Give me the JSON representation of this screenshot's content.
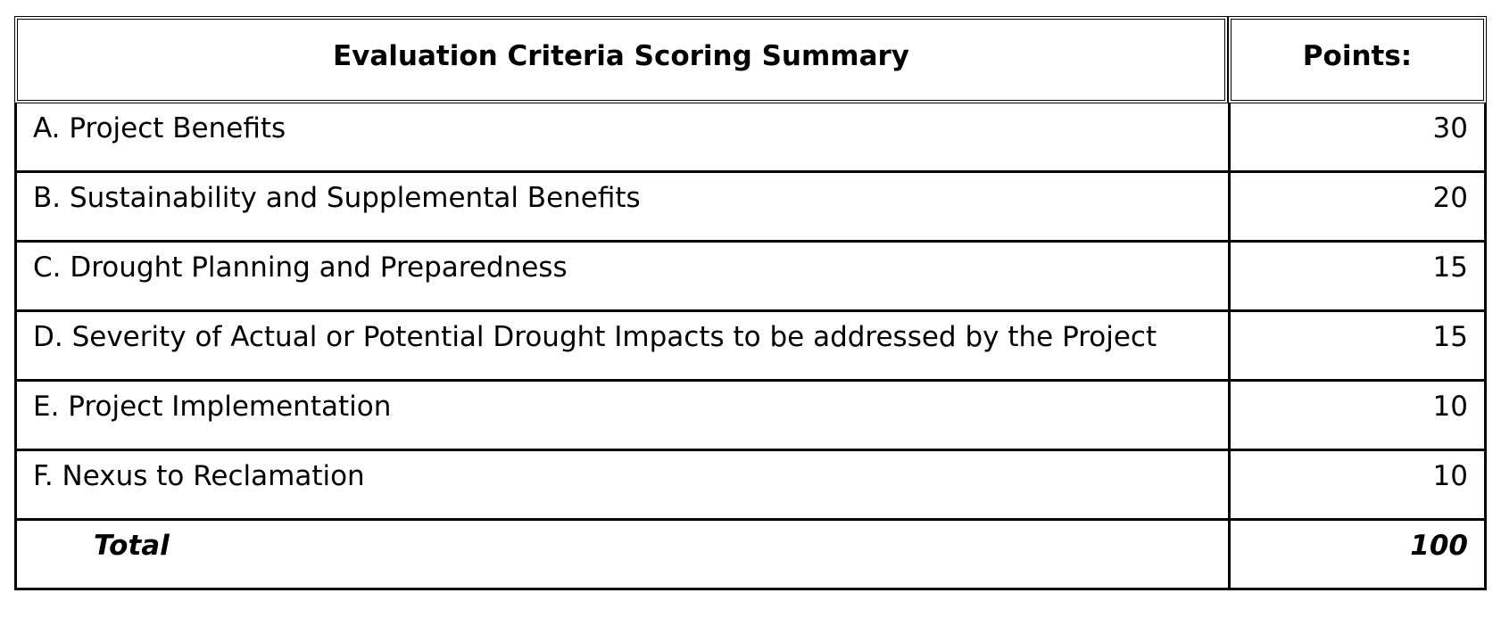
{
  "table": {
    "header": [
      "Evaluation Criteria Scoring Summary",
      "Points:"
    ],
    "rows": [
      [
        "A. Project Benefits",
        30
      ],
      [
        "B. Sustainability and Supplemental Benefits",
        20
      ],
      [
        "C. Drought Planning and Preparedness",
        15
      ],
      [
        "D. Severity of Actual or Potential Drought Impacts to be addressed by the Project",
        15
      ],
      [
        "E. Project Implementation",
        10
      ],
      [
        "F. Nexus to Reclamation",
        10
      ]
    ],
    "total": [
      "Total",
      100
    ]
  }
}
